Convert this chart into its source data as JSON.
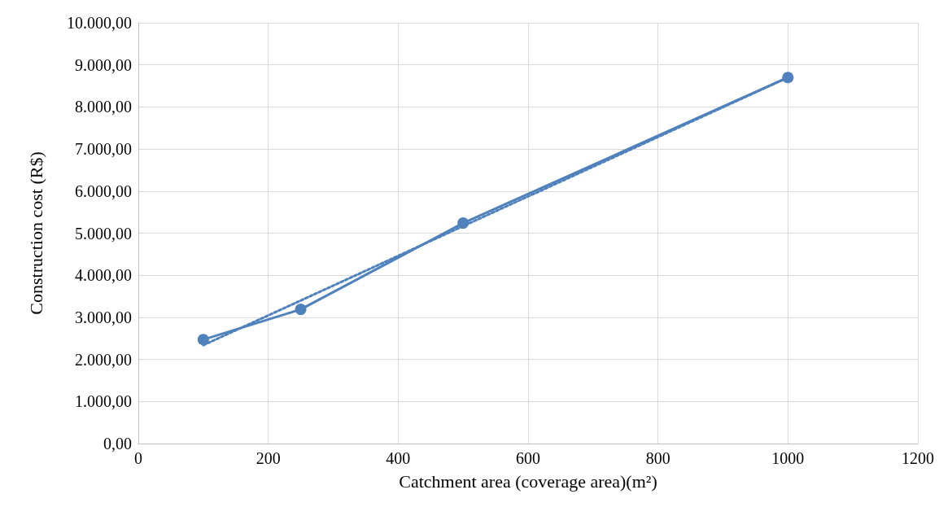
{
  "chart_data": {
    "type": "line",
    "xlabel": "Catchment area (coverage area)(m²)",
    "ylabel": "Construction cost (R$)",
    "xlim": [
      0,
      1200
    ],
    "xticks": [
      0,
      200,
      400,
      600,
      800,
      1000,
      1200
    ],
    "ylim": [
      0,
      10000
    ],
    "yticks": [
      {
        "value": 0,
        "label": "0,00"
      },
      {
        "value": 1000,
        "label": "1.000,00"
      },
      {
        "value": 2000,
        "label": "2.000,00"
      },
      {
        "value": 3000,
        "label": "3.000,00"
      },
      {
        "value": 4000,
        "label": "4.000,00"
      },
      {
        "value": 5000,
        "label": "5.000,00"
      },
      {
        "value": 6000,
        "label": "6.000,00"
      },
      {
        "value": 7000,
        "label": "7.000,00"
      },
      {
        "value": 8000,
        "label": "8.000,00"
      },
      {
        "value": 9000,
        "label": "9.000,00"
      },
      {
        "value": 10000,
        "label": "10.000,00"
      }
    ],
    "grid": true,
    "series": [
      {
        "color": "#4f81bd",
        "x": [
          100,
          250,
          500,
          1000
        ],
        "values": [
          2470,
          3190,
          5240,
          8700
        ],
        "marker": "circle",
        "line_style": "solid"
      },
      {
        "type": "line",
        "color": "#4f81bd",
        "x": [
          100,
          1000
        ],
        "values": [
          2340,
          8700
        ],
        "marker": "none",
        "line_style": "dotted"
      }
    ]
  }
}
